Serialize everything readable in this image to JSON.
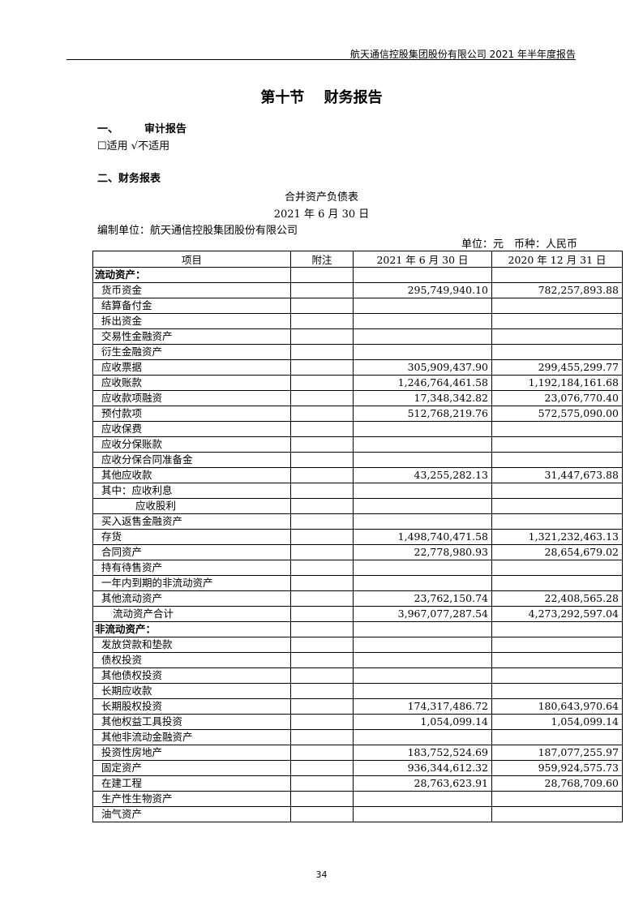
{
  "header": "航天通信控股集团股份有限公司 2021 年半年度报告",
  "title": "第十节　 财务报告",
  "section1": {
    "num": "一、",
    "label": "审计报告"
  },
  "audit_options": "☐适用 √不适用",
  "section2": "二、财务报表",
  "table_title": "合并资产负债表",
  "table_date": "2021 年 6 月 30 日",
  "preparer": "编制单位：航天通信控股集团股份有限公司",
  "unit": "单位：元　币种：人民币",
  "columns": [
    "项目",
    "附注",
    "2021 年 6 月 30 日",
    "2020 年 12 月 31 日"
  ],
  "rows": [
    {
      "item": "流动资产：",
      "level": 0,
      "bold": true,
      "note": "",
      "cur": "",
      "prev": ""
    },
    {
      "item": "货币资金",
      "level": 1,
      "note": "",
      "cur": "295,749,940.10",
      "prev": "782,257,893.88"
    },
    {
      "item": "结算备付金",
      "level": 1,
      "note": "",
      "cur": "",
      "prev": ""
    },
    {
      "item": "拆出资金",
      "level": 1,
      "note": "",
      "cur": "",
      "prev": ""
    },
    {
      "item": "交易性金融资产",
      "level": 1,
      "note": "",
      "cur": "",
      "prev": ""
    },
    {
      "item": "衍生金融资产",
      "level": 1,
      "note": "",
      "cur": "",
      "prev": ""
    },
    {
      "item": "应收票据",
      "level": 1,
      "note": "",
      "cur": "305,909,437.90",
      "prev": "299,455,299.77"
    },
    {
      "item": "应收账款",
      "level": 1,
      "note": "",
      "cur": "1,246,764,461.58",
      "prev": "1,192,184,161.68"
    },
    {
      "item": "应收款项融资",
      "level": 1,
      "note": "",
      "cur": "17,348,342.82",
      "prev": "23,076,770.40"
    },
    {
      "item": "预付款项",
      "level": 1,
      "note": "",
      "cur": "512,768,219.76",
      "prev": "572,575,090.00"
    },
    {
      "item": "应收保费",
      "level": 1,
      "note": "",
      "cur": "",
      "prev": ""
    },
    {
      "item": "应收分保账款",
      "level": 1,
      "note": "",
      "cur": "",
      "prev": ""
    },
    {
      "item": "应收分保合同准备金",
      "level": 1,
      "note": "",
      "cur": "",
      "prev": ""
    },
    {
      "item": "其他应收款",
      "level": 1,
      "note": "",
      "cur": "43,255,282.13",
      "prev": "31,447,673.88"
    },
    {
      "item": "其中：应收利息",
      "level": 1,
      "note": "",
      "cur": "",
      "prev": ""
    },
    {
      "item": "应收股利",
      "level": 3,
      "note": "",
      "cur": "",
      "prev": ""
    },
    {
      "item": "买入返售金融资产",
      "level": 1,
      "note": "",
      "cur": "",
      "prev": ""
    },
    {
      "item": "存货",
      "level": 1,
      "note": "",
      "cur": "1,498,740,471.58",
      "prev": "1,321,232,463.13"
    },
    {
      "item": "合同资产",
      "level": 1,
      "note": "",
      "cur": "22,778,980.93",
      "prev": "28,654,679.02"
    },
    {
      "item": "持有待售资产",
      "level": 1,
      "note": "",
      "cur": "",
      "prev": ""
    },
    {
      "item": "一年内到期的非流动资产",
      "level": 1,
      "note": "",
      "cur": "",
      "prev": ""
    },
    {
      "item": "其他流动资产",
      "level": 1,
      "note": "",
      "cur": "23,762,150.74",
      "prev": "22,408,565.28"
    },
    {
      "item": "流动资产合计",
      "level": 2,
      "note": "",
      "cur": "3,967,077,287.54",
      "prev": "4,273,292,597.04"
    },
    {
      "item": "非流动资产：",
      "level": 0,
      "bold": true,
      "note": "",
      "cur": "",
      "prev": ""
    },
    {
      "item": "发放贷款和垫款",
      "level": 1,
      "note": "",
      "cur": "",
      "prev": ""
    },
    {
      "item": "债权投资",
      "level": 1,
      "note": "",
      "cur": "",
      "prev": ""
    },
    {
      "item": "其他债权投资",
      "level": 1,
      "note": "",
      "cur": "",
      "prev": ""
    },
    {
      "item": "长期应收款",
      "level": 1,
      "note": "",
      "cur": "",
      "prev": ""
    },
    {
      "item": "长期股权投资",
      "level": 1,
      "note": "",
      "cur": "174,317,486.72",
      "prev": "180,643,970.64"
    },
    {
      "item": "其他权益工具投资",
      "level": 1,
      "note": "",
      "cur": "1,054,099.14",
      "prev": "1,054,099.14"
    },
    {
      "item": "其他非流动金融资产",
      "level": 1,
      "note": "",
      "cur": "",
      "prev": ""
    },
    {
      "item": "投资性房地产",
      "level": 1,
      "note": "",
      "cur": "183,752,524.69",
      "prev": "187,077,255.97"
    },
    {
      "item": "固定资产",
      "level": 1,
      "note": "",
      "cur": "936,344,612.32",
      "prev": "959,924,575.73"
    },
    {
      "item": "在建工程",
      "level": 1,
      "note": "",
      "cur": "28,763,623.91",
      "prev": "28,768,709.60"
    },
    {
      "item": "生产性生物资产",
      "level": 1,
      "note": "",
      "cur": "",
      "prev": ""
    },
    {
      "item": "油气资产",
      "level": 1,
      "note": "",
      "cur": "",
      "prev": ""
    }
  ],
  "page_number": "34"
}
